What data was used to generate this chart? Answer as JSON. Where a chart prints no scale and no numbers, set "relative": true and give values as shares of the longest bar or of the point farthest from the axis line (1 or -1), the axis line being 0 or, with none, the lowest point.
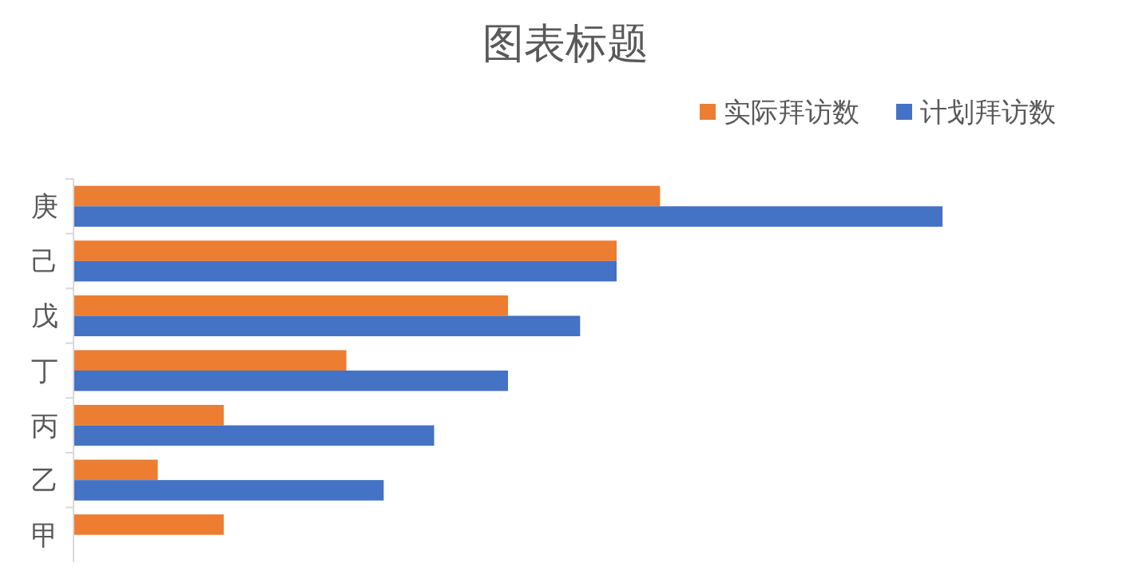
{
  "chart_data": {
    "type": "bar",
    "orientation": "horizontal",
    "relative": true,
    "title": "图表标题",
    "legend": "top right",
    "categories": [
      "庚",
      "己",
      "戊",
      "丁",
      "丙",
      "乙",
      "甲"
    ],
    "series": [
      {
        "name": "实际拜访数",
        "color": "#ed7d31",
        "values": [
          0.675,
          0.625,
          0.5,
          0.314,
          0.173,
          0.097,
          0.173
        ]
      },
      {
        "name": "计划拜访数",
        "color": "#4472c4",
        "values": [
          1,
          0.625,
          0.583,
          0.5,
          0.415,
          0.357,
          null
        ]
      }
    ]
  }
}
